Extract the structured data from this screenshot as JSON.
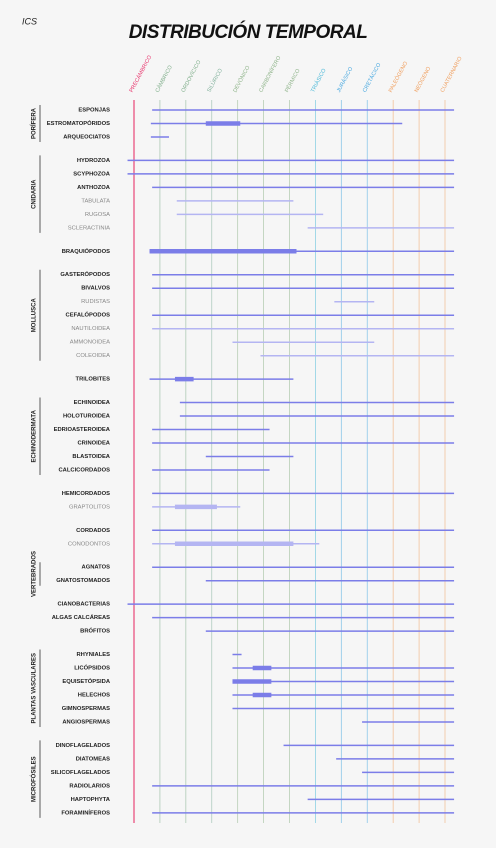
{
  "chart_data": {
    "type": "range",
    "title": "DISTRIBUCIÓN TEMPORAL",
    "watermark": "ICS",
    "categories": [
      "PRECÁMBRICO",
      "CÁMBRICO",
      "ORDOVÍCICO",
      "SILÚRICO",
      "DEVÓNICO",
      "CARBONÍFERO",
      "PÉRMICO",
      "TRIÁSICO",
      "JURÁSICO",
      "CRETÁCICO",
      "PALEÓGENO",
      "NEÓGENO",
      "CUATERNARIO"
    ],
    "category_colors": [
      "#e8346c",
      "#7fae8a",
      "#7fae8a",
      "#7fb09a",
      "#8fb48a",
      "#8fb48a",
      "#8fb48a",
      "#48b8d8",
      "#48a8e0",
      "#48a8e0",
      "#f0a060",
      "#f0a060",
      "#f0a060"
    ],
    "xlim": [
      0,
      12
    ],
    "color": "#7b7de8",
    "light_color": "#b4b5f2",
    "sections": [
      {
        "name": "PORÍFERA",
        "taxa": [
          {
            "name": "ESPONJAS",
            "start": 0.7,
            "end": 12.35
          },
          {
            "name": "ESTROMATOPÓRIDOS",
            "start": 0.65,
            "end": 10.35,
            "thick": [
              2.77,
              4.1
            ]
          },
          {
            "name": "ARQUEOCIATOS",
            "start": 0.65,
            "end": 1.35
          }
        ]
      },
      {
        "name": "CNIDARIA",
        "taxa": [
          {
            "name": "HYDROZOA",
            "start": -0.25,
            "end": 12.35
          },
          {
            "name": "SCYPHOZOA",
            "start": -0.25,
            "end": 12.35
          },
          {
            "name": "ANTHOZOA",
            "start": 0.7,
            "end": 12.35
          },
          {
            "name": "TABULATA",
            "start": 1.65,
            "end": 6.15,
            "light": true
          },
          {
            "name": "RUGOSA",
            "start": 1.65,
            "end": 7.3,
            "light": true
          },
          {
            "name": "SCLERACTINIA",
            "start": 6.7,
            "end": 12.35,
            "light": true
          }
        ]
      },
      {
        "name": null,
        "taxa": [
          {
            "name": "BRAQUIÓPODOS",
            "start": 0.6,
            "end": 12.35,
            "thick": [
              0.6,
              6.27
            ]
          }
        ]
      },
      {
        "name": "MOLLUSCA",
        "taxa": [
          {
            "name": "GASTERÓPODOS",
            "start": 0.7,
            "end": 12.35
          },
          {
            "name": "BIVALVOS",
            "start": 0.7,
            "end": 12.35
          },
          {
            "name": "RUDISTAS",
            "start": 7.73,
            "end": 9.27,
            "light": true
          },
          {
            "name": "CEFALÓPODOS",
            "start": 0.7,
            "end": 12.35
          },
          {
            "name": "NAUTILOIDEA",
            "start": 0.7,
            "end": 12.35,
            "light": true
          },
          {
            "name": "AMMONOIDEA",
            "start": 3.8,
            "end": 9.27,
            "light": true
          },
          {
            "name": "COLEOIDEA",
            "start": 4.88,
            "end": 12.35,
            "light": true
          }
        ]
      },
      {
        "name": null,
        "taxa": [
          {
            "name": "TRILOBITES",
            "start": 0.6,
            "end": 6.15,
            "thick": [
              1.58,
              2.3
            ]
          }
        ]
      },
      {
        "name": "ECHINODERMATA",
        "taxa": [
          {
            "name": "ECHINOIDEA",
            "start": 1.77,
            "end": 12.35
          },
          {
            "name": "HOLOTUROIDEA",
            "start": 1.77,
            "end": 12.35
          },
          {
            "name": "EDRIOASTEROIDEA",
            "start": 0.7,
            "end": 5.23
          },
          {
            "name": "CRINOIDEA",
            "start": 0.7,
            "end": 12.35
          },
          {
            "name": "BLASTOIDEA",
            "start": 2.77,
            "end": 6.15
          },
          {
            "name": "CALCICORDADOS",
            "start": 0.7,
            "end": 5.23
          }
        ]
      },
      {
        "name": null,
        "taxa": [
          {
            "name": "HEMICORDADOS",
            "start": 0.7,
            "end": 12.35
          },
          {
            "name": "GRAPTOLITOS",
            "start": 0.7,
            "end": 4.1,
            "thick": [
              1.58,
              3.2
            ],
            "light": true
          }
        ]
      },
      {
        "name": null,
        "taxa": [
          {
            "name": "CORDADOS",
            "start": 0.7,
            "end": 12.35
          },
          {
            "name": "CONODONTOS",
            "start": 0.7,
            "end": 7.15,
            "thick": [
              1.58,
              6.15
            ],
            "light": true
          }
        ]
      },
      {
        "name": "VERTEBRADOS",
        "taxa": [
          {
            "name": "AGNATOS",
            "start": 0.7,
            "end": 12.35
          },
          {
            "name": "GNATOSTOMADOS",
            "start": 2.77,
            "end": 12.35
          }
        ]
      },
      {
        "name": null,
        "taxa": [
          {
            "name": "CIANOBACTERIAS",
            "start": -0.25,
            "end": 12.35
          },
          {
            "name": "ALGAS CALCÁREAS",
            "start": 0.7,
            "end": 12.35
          },
          {
            "name": "BRÓFITOS",
            "start": 2.77,
            "end": 12.35
          }
        ]
      },
      {
        "name": "PLANTAS VASCULARES",
        "taxa": [
          {
            "name": "RHYNIALES",
            "start": 3.8,
            "end": 4.15
          },
          {
            "name": "LICÓPSIDOS",
            "start": 3.8,
            "end": 12.35,
            "thick": [
              4.58,
              5.3
            ]
          },
          {
            "name": "EQUISETÓPSIDA",
            "start": 3.8,
            "end": 12.35,
            "thick": [
              3.8,
              5.3
            ]
          },
          {
            "name": "HELECHOS",
            "start": 3.8,
            "end": 12.35,
            "thick": [
              4.58,
              5.3
            ]
          },
          {
            "name": "GIMNOSPERMAS",
            "start": 3.8,
            "end": 12.35
          },
          {
            "name": "ANGIOSPERMAS",
            "start": 8.8,
            "end": 12.35
          }
        ]
      },
      {
        "name": "MICROFÓSILES",
        "taxa": [
          {
            "name": "DINOFLAGELADOS",
            "start": 5.77,
            "end": 12.35
          },
          {
            "name": "DIATOMEAS",
            "start": 7.8,
            "end": 12.35
          },
          {
            "name": "SILICOFLAGELADOS",
            "start": 8.8,
            "end": 12.35
          },
          {
            "name": "RADIOLARIOS",
            "start": 0.7,
            "end": 12.35
          },
          {
            "name": "HAPTOPHYTA",
            "start": 6.7,
            "end": 12.35
          },
          {
            "name": "FORAMINÍFEROS",
            "start": 0.7,
            "end": 12.35
          }
        ]
      }
    ]
  }
}
